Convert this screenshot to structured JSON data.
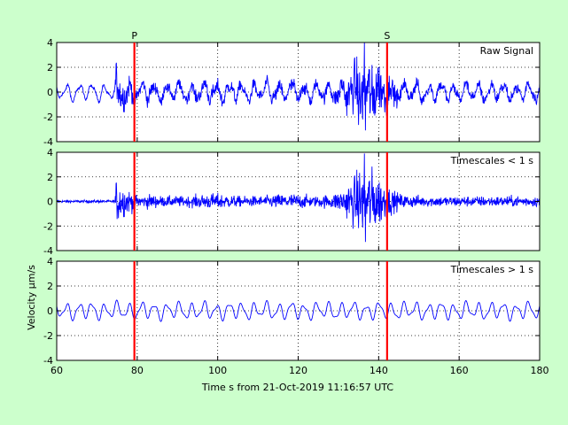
{
  "chart_data": {
    "type": "line",
    "title": "",
    "xlabel": "Time s from 21-Oct-2019 11:16:57 UTC",
    "ylabel": "Velocity µm/s",
    "xlim": [
      60,
      180
    ],
    "x_ticks": [
      60,
      80,
      100,
      120,
      140,
      160,
      180
    ],
    "grid": true,
    "phase_markers": [
      {
        "label": "P",
        "x": 79.3
      },
      {
        "label": "S",
        "x": 142.1
      }
    ],
    "panels": [
      {
        "annotation": "Raw Signal",
        "ylim": [
          -4,
          4
        ],
        "y_ticks": [
          4,
          2,
          0,
          -2,
          -4
        ],
        "series": [
          {
            "color": "#0000ff",
            "description": "raw velocity trace, background ±0.7, P-onset burst ±1.5, S-arrival max ~+4 / -3 near t=137"
          }
        ]
      },
      {
        "annotation": "Timescales < 1 s",
        "ylim": [
          -4,
          4
        ],
        "y_ticks": [
          4,
          2,
          0,
          -2,
          -4
        ],
        "series": [
          {
            "color": "#0000ff",
            "description": "high-pass filtered trace, ±0.1 noise before t=75, burst ±1.8 at t=75-80, S-wave max ~+4 / -3.3 at t=137"
          }
        ]
      },
      {
        "annotation": "Timescales > 1 s",
        "ylim": [
          -4,
          4
        ],
        "y_ticks": [
          4,
          2,
          0,
          -2,
          -4
        ],
        "series": [
          {
            "color": "#0000ff",
            "description": "low-pass filtered smooth oscillation, amplitude ~±0.7, period ~3 s"
          }
        ]
      }
    ],
    "colors": {
      "background": "#ccffcc",
      "plot_bg": "#ffffff",
      "trace": "#0000ff",
      "marker": "#ff0000"
    }
  }
}
